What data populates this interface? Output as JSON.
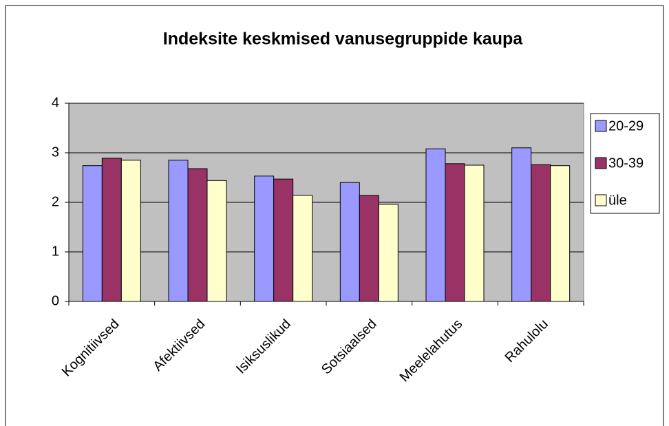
{
  "chart_data": {
    "type": "bar",
    "title": "Indeksite keskmised vanusegruppide kaupa",
    "categories": [
      "Kognitiivsed",
      "Afektiivsed",
      "Isiksuslikud",
      "Sotsiaalsed",
      "Meelelahutus",
      "Rahulolu"
    ],
    "series": [
      {
        "name": "20-29",
        "color": "#9999ff",
        "values": [
          2.74,
          2.85,
          2.53,
          2.4,
          3.08,
          3.1
        ]
      },
      {
        "name": "30-39",
        "color": "#993366",
        "values": [
          2.89,
          2.68,
          2.47,
          2.14,
          2.78,
          2.76
        ]
      },
      {
        "name": "üle",
        "color": "#ffffcc",
        "values": [
          2.85,
          2.44,
          2.14,
          1.96,
          2.75,
          2.74
        ]
      }
    ],
    "ylim": [
      0,
      4
    ],
    "yticks": [
      0,
      1,
      2,
      3,
      4
    ],
    "grid": true,
    "legend": "right",
    "plot_background": "#c0c0c0"
  }
}
